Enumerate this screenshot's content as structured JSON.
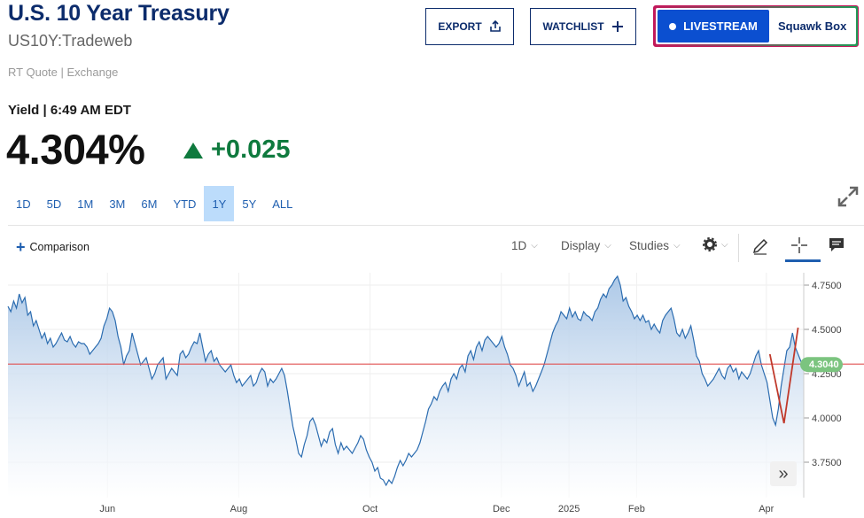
{
  "header": {
    "title": "U.S. 10 Year Treasury",
    "symbol": "US10Y:Tradeweb",
    "rt_quote": "RT Quote | Exchange",
    "yield_label": "Yield | 6:49 AM EDT",
    "price": "4.304%",
    "change": "+0.025",
    "change_color": "#0f7a3e"
  },
  "actions": {
    "export_label": "EXPORT",
    "watchlist_label": "WATCHLIST",
    "livestream_label": "LIVESTREAM",
    "squawk_label": "Squawk Box",
    "livestream_color": "#0b4fd0"
  },
  "ranges": [
    "1D",
    "5D",
    "1M",
    "3M",
    "6M",
    "YTD",
    "1Y",
    "5Y",
    "ALL"
  ],
  "active_range": "1Y",
  "toolbar": {
    "comparison_label": "Comparison",
    "interval_label": "1D",
    "display_label": "Display",
    "studies_label": "Studies",
    "icons": [
      "gear-icon",
      "pencil-icon",
      "crosshair-icon",
      "comment-icon",
      "expand-icon",
      "fast-forward-icon"
    ]
  },
  "chart_data": {
    "type": "area",
    "x_labels": [
      "Jun",
      "Aug",
      "Oct",
      "Dec",
      "2025",
      "Feb",
      "Apr"
    ],
    "y_ticks": [
      "4.7500",
      "4.5000",
      "4.2500",
      "4.0000",
      "3.7500"
    ],
    "ylim": [
      3.55,
      4.82
    ],
    "current_value_label": "4.3040",
    "current_value": 4.304,
    "reference_line": 4.304,
    "line_color": "#2b6cb0",
    "fill_color": "#bcd3ea",
    "reference_color": "#e05252",
    "marker_color": "#c0392b",
    "series": [
      {
        "values": [
          4.63,
          4.6,
          4.66,
          4.62,
          4.7,
          4.65,
          4.68,
          4.58,
          4.6,
          4.52,
          4.55,
          4.5,
          4.45,
          4.48,
          4.42,
          4.45,
          4.4,
          4.42,
          4.45,
          4.48,
          4.44,
          4.43,
          4.46,
          4.42,
          4.4,
          4.43,
          4.42,
          4.42,
          4.4,
          4.36,
          4.38,
          4.4,
          4.42,
          4.45,
          4.52,
          4.56,
          4.62,
          4.6,
          4.55,
          4.46,
          4.4,
          4.3,
          4.35,
          4.38,
          4.48,
          4.42,
          4.36,
          4.3,
          4.32,
          4.34,
          4.28,
          4.22,
          4.25,
          4.3,
          4.32,
          4.34,
          4.22,
          4.25,
          4.28,
          4.26,
          4.24,
          4.36,
          4.38,
          4.34,
          4.36,
          4.4,
          4.43,
          4.42,
          4.48,
          4.4,
          4.32,
          4.36,
          4.38,
          4.32,
          4.34,
          4.3,
          4.28,
          4.26,
          4.28,
          4.3,
          4.24,
          4.2,
          4.22,
          4.18,
          4.2,
          4.22,
          4.24,
          4.18,
          4.2,
          4.25,
          4.28,
          4.26,
          4.18,
          4.22,
          4.2,
          4.22,
          4.25,
          4.28,
          4.24,
          4.15,
          4.05,
          3.95,
          3.88,
          3.8,
          3.78,
          3.85,
          3.9,
          3.98,
          4.0,
          3.96,
          3.9,
          3.84,
          3.88,
          3.86,
          3.92,
          3.94,
          3.85,
          3.8,
          3.86,
          3.82,
          3.84,
          3.82,
          3.8,
          3.83,
          3.86,
          3.9,
          3.88,
          3.82,
          3.78,
          3.75,
          3.7,
          3.72,
          3.66,
          3.65,
          3.62,
          3.65,
          3.63,
          3.67,
          3.72,
          3.76,
          3.73,
          3.76,
          3.8,
          3.78,
          3.8,
          3.82,
          3.86,
          3.92,
          3.98,
          4.05,
          4.08,
          4.12,
          4.1,
          4.15,
          4.18,
          4.2,
          4.15,
          4.22,
          4.25,
          4.22,
          4.28,
          4.3,
          4.26,
          4.35,
          4.38,
          4.33,
          4.4,
          4.43,
          4.38,
          4.44,
          4.46,
          4.44,
          4.42,
          4.4,
          4.42,
          4.46,
          4.4,
          4.36,
          4.3,
          4.28,
          4.24,
          4.18,
          4.22,
          4.26,
          4.18,
          4.2,
          4.15,
          4.18,
          4.22,
          4.26,
          4.3,
          4.36,
          4.42,
          4.48,
          4.52,
          4.55,
          4.6,
          4.58,
          4.56,
          4.62,
          4.57,
          4.6,
          4.56,
          4.55,
          4.6,
          4.58,
          4.57,
          4.55,
          4.6,
          4.62,
          4.67,
          4.7,
          4.68,
          4.73,
          4.75,
          4.78,
          4.8,
          4.75,
          4.66,
          4.68,
          4.63,
          4.6,
          4.56,
          4.58,
          4.55,
          4.58,
          4.54,
          4.55,
          4.5,
          4.53,
          4.5,
          4.48,
          4.55,
          4.58,
          4.6,
          4.62,
          4.56,
          4.48,
          4.46,
          4.5,
          4.45,
          4.48,
          4.52,
          4.44,
          4.35,
          4.32,
          4.25,
          4.22,
          4.18,
          4.2,
          4.22,
          4.25,
          4.28,
          4.24,
          4.22,
          4.28,
          4.3,
          4.26,
          4.28,
          4.22,
          4.26,
          4.24,
          4.22,
          4.25,
          4.3,
          4.35,
          4.38,
          4.3,
          4.25,
          4.2,
          4.1,
          4.0,
          3.96,
          4.05,
          4.18,
          4.28,
          4.38,
          4.4,
          4.48,
          4.4,
          4.36,
          4.32,
          4.304
        ]
      }
    ],
    "markers": [
      4.36,
      3.97,
      4.51
    ]
  }
}
